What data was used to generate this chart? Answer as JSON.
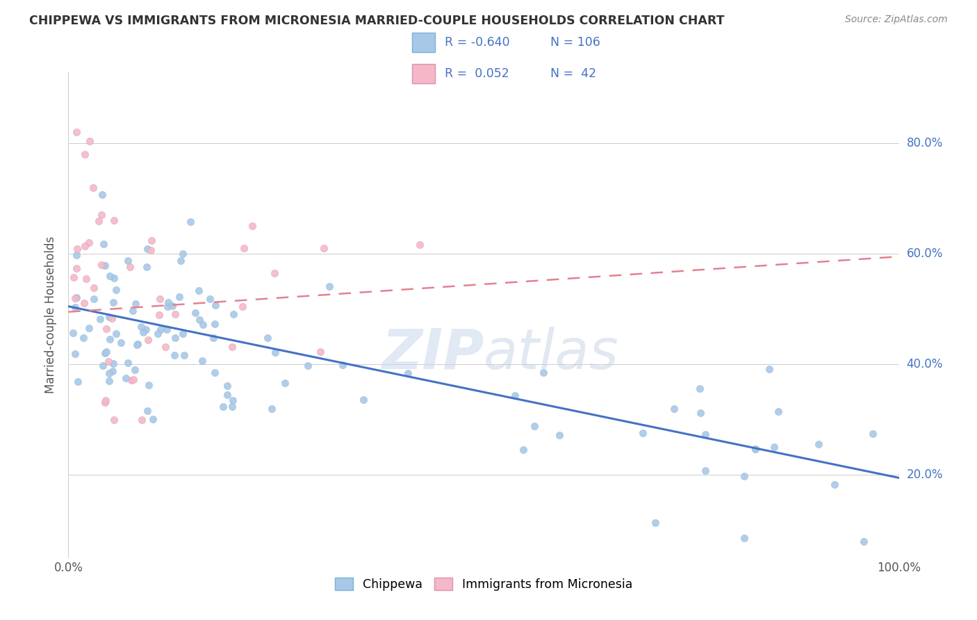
{
  "title": "CHIPPEWA VS IMMIGRANTS FROM MICRONESIA MARRIED-COUPLE HOUSEHOLDS CORRELATION CHART",
  "source": "Source: ZipAtlas.com",
  "ylabel": "Married-couple Households",
  "color_blue": "#a8c8e8",
  "color_pink": "#f4b8c8",
  "color_blue_line": "#4472c4",
  "color_pink_line": "#e48090",
  "watermark": "ZIPatlas",
  "legend_r1": "R = -0.640",
  "legend_n1": "N = 106",
  "legend_r2": "R =  0.052",
  "legend_n2": "N =  42",
  "blue_line_x": [
    0.0,
    1.0
  ],
  "blue_line_y": [
    0.505,
    0.195
  ],
  "pink_line_x": [
    0.0,
    1.0
  ],
  "pink_line_y": [
    0.495,
    0.595
  ],
  "xlim": [
    0.0,
    1.0
  ],
  "ylim": [
    0.05,
    0.93
  ],
  "yticks": [
    0.2,
    0.4,
    0.6,
    0.8
  ],
  "ytick_labels_right": [
    "20.0%",
    "40.0%",
    "60.0%",
    "80.0%"
  ]
}
